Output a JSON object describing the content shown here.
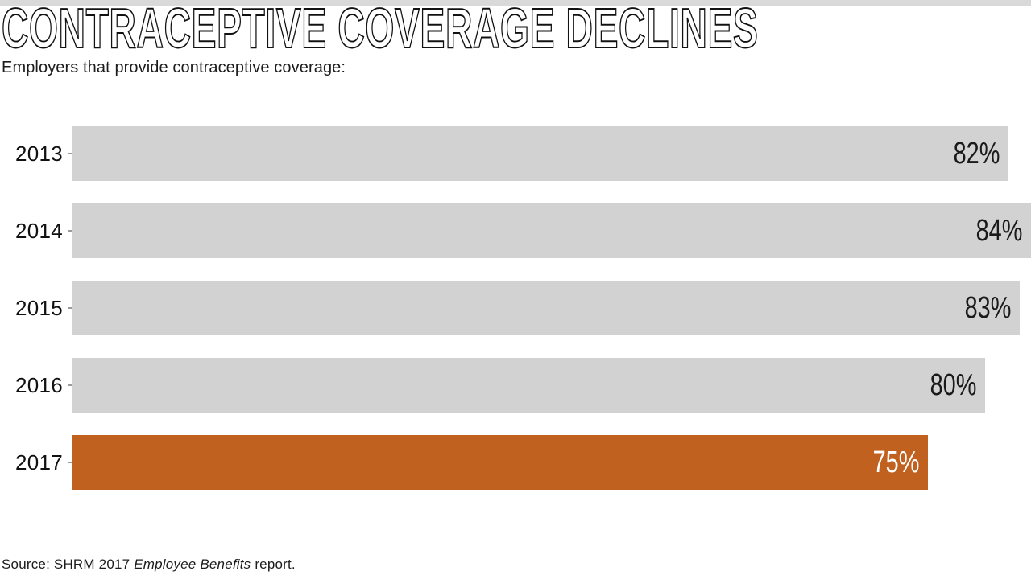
{
  "page": {
    "background": "#ffffff",
    "top_strip_color": "#d9d9d9"
  },
  "header": {
    "title": "CONTRACEPTIVE COVERAGE DECLINES",
    "subtitle": "Employers that provide contraceptive coverage:"
  },
  "chart_data": {
    "type": "bar",
    "orientation": "horizontal",
    "title": "CONTRACEPTIVE COVERAGE DECLINES",
    "subtitle": "Employers that provide contraceptive coverage:",
    "categories": [
      "2013",
      "2014",
      "2015",
      "2016",
      "2017"
    ],
    "values": [
      82,
      84,
      83,
      80,
      75
    ],
    "value_labels": [
      "82%",
      "84%",
      "83%",
      "80%",
      "75%"
    ],
    "xlabel": "",
    "ylabel": "",
    "xlim": [
      0,
      84
    ],
    "grid": false,
    "legend": false,
    "highlight_index": 4,
    "bar_colors": {
      "default": "#d2d2d2",
      "highlight": "#c1611f"
    },
    "label_colors": {
      "on_default": "#1a1a1a",
      "on_highlight": "#ffffff"
    }
  },
  "footer": {
    "source_prefix": "Source: SHRM 2017 ",
    "source_italic": "Employee Benefits",
    "source_suffix": " report."
  }
}
